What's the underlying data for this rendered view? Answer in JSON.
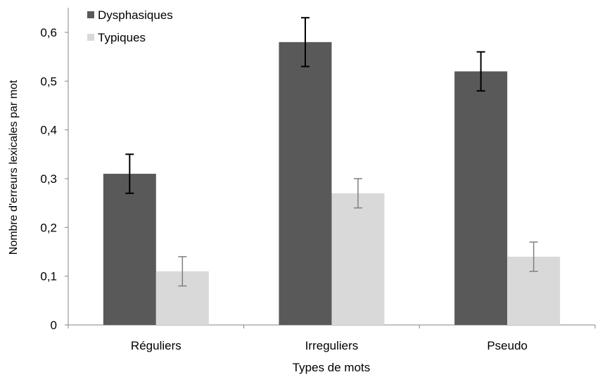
{
  "chart_data": {
    "type": "bar",
    "title": "",
    "xlabel": "Types de mots",
    "ylabel": "Nombre d'erreurs lexicales par mot",
    "categories": [
      "Réguliers",
      "Irreguliers",
      "Pseudo"
    ],
    "ylim": [
      0,
      0.6
    ],
    "yticks": [
      {
        "value": 0,
        "label": "0"
      },
      {
        "value": 0.1,
        "label": "0,1"
      },
      {
        "value": 0.2,
        "label": "0,2"
      },
      {
        "value": 0.3,
        "label": "0,3"
      },
      {
        "value": 0.4,
        "label": "0,4"
      },
      {
        "value": 0.5,
        "label": "0,5"
      },
      {
        "value": 0.6,
        "label": "0,6"
      }
    ],
    "series": [
      {
        "name": "Dysphasiques",
        "color": "#595959",
        "error_color": "#000000",
        "values": [
          0.31,
          0.58,
          0.52
        ],
        "errors": [
          0.04,
          0.05,
          0.04
        ]
      },
      {
        "name": "Typiques",
        "color": "#d9d9d9",
        "error_color": "#7f7f7f",
        "values": [
          0.11,
          0.27,
          0.14
        ],
        "errors": [
          0.03,
          0.03,
          0.03
        ]
      }
    ],
    "grid": false,
    "legend_position": "top-left"
  }
}
